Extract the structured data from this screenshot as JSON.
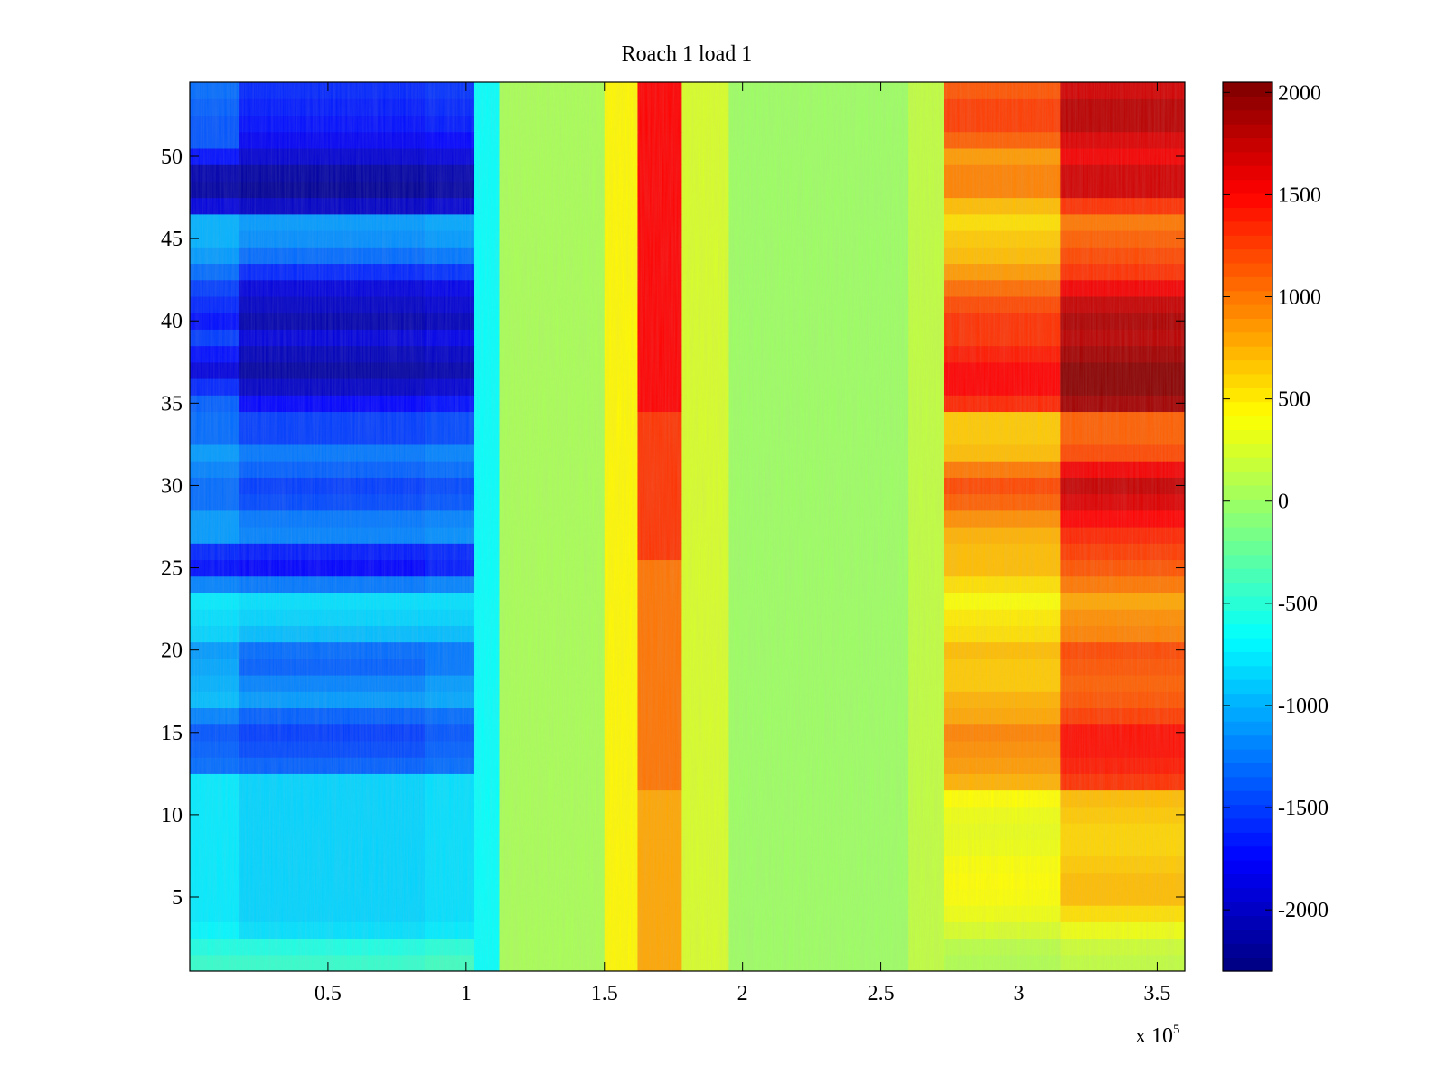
{
  "chart_data": {
    "type": "heatmap",
    "title": "Roach 1 load 1",
    "xlabel": "",
    "ylabel": "",
    "x_exponent_label": "x 10",
    "x_exponent_power": "5",
    "xlim": [
      0,
      3.6
    ],
    "ylim": [
      0.5,
      54.5
    ],
    "x_ticks": [
      0.5,
      1,
      1.5,
      2,
      2.5,
      3,
      3.5
    ],
    "x_tick_labels": [
      "0.5",
      "1",
      "1.5",
      "2",
      "2.5",
      "3",
      "3.5"
    ],
    "y_ticks": [
      5,
      10,
      15,
      20,
      25,
      30,
      35,
      40,
      45,
      50
    ],
    "y_tick_labels": [
      "5",
      "10",
      "15",
      "20",
      "25",
      "30",
      "35",
      "40",
      "45",
      "50"
    ],
    "colormap": "jet",
    "clim": [
      -2300,
      2050
    ],
    "colorbar_ticks": [
      2000,
      1500,
      1000,
      500,
      0,
      -500,
      -1000,
      -1500,
      -2000
    ],
    "colorbar_tick_labels": [
      "2000",
      "1500",
      "1000",
      "500",
      "0",
      "-500",
      "-1000",
      "-1500",
      "-2000"
    ],
    "rows": 54,
    "x_segments": [
      {
        "x0": 0.0,
        "x1": 0.18,
        "base": "col_a"
      },
      {
        "x0": 0.18,
        "x1": 0.85,
        "base": "col_b"
      },
      {
        "x0": 0.85,
        "x1": 1.03,
        "base": "col_b_edge"
      },
      {
        "x0": 1.03,
        "x1": 1.12,
        "value": -650
      },
      {
        "x0": 1.12,
        "x1": 1.5,
        "value": 50
      },
      {
        "x0": 1.5,
        "x1": 1.62,
        "value": 450
      },
      {
        "x0": 1.62,
        "x1": 1.78,
        "value": 800,
        "high_rows_boost": 700
      },
      {
        "x0": 1.78,
        "x1": 1.95,
        "value": 250
      },
      {
        "x0": 1.95,
        "x1": 2.6,
        "value": 0
      },
      {
        "x0": 2.6,
        "x1": 2.73,
        "value": 150
      },
      {
        "x0": 2.73,
        "x1": 3.15,
        "base": "col_r1"
      },
      {
        "x0": 3.15,
        "x1": 3.6,
        "base": "col_r2"
      }
    ],
    "row_profiles": {
      "rows": [
        1,
        2,
        3,
        4,
        5,
        6,
        7,
        8,
        9,
        10,
        11,
        12,
        13,
        14,
        15,
        16,
        17,
        18,
        19,
        20,
        21,
        22,
        23,
        24,
        25,
        26,
        27,
        28,
        29,
        30,
        31,
        32,
        33,
        34,
        35,
        36,
        37,
        38,
        39,
        40,
        41,
        42,
        43,
        44,
        45,
        46,
        47,
        48,
        49,
        50,
        51,
        52,
        53,
        54
      ],
      "col_a": [
        -450,
        -550,
        -700,
        -750,
        -750,
        -750,
        -750,
        -750,
        -750,
        -750,
        -750,
        -750,
        -1300,
        -1350,
        -1400,
        -1200,
        -950,
        -1000,
        -1050,
        -1100,
        -850,
        -800,
        -750,
        -1200,
        -1700,
        -1600,
        -1100,
        -1100,
        -1300,
        -1300,
        -1200,
        -1100,
        -1300,
        -1300,
        -1350,
        -1600,
        -1900,
        -1700,
        -1500,
        -1700,
        -1600,
        -1500,
        -1300,
        -1100,
        -1000,
        -1000,
        -1900,
        -2150,
        -2100,
        -1700,
        -1400,
        -1400,
        -1350,
        -1300
      ],
      "col_b": [
        -450,
        -550,
        -800,
        -850,
        -850,
        -850,
        -850,
        -850,
        -850,
        -850,
        -850,
        -850,
        -1350,
        -1450,
        -1500,
        -1350,
        -1100,
        -1200,
        -1350,
        -1300,
        -950,
        -850,
        -800,
        -1250,
        -1750,
        -1650,
        -1200,
        -1250,
        -1450,
        -1500,
        -1350,
        -1250,
        -1500,
        -1500,
        -1750,
        -2000,
        -2150,
        -2050,
        -1900,
        -2100,
        -2000,
        -1900,
        -1600,
        -1300,
        -1150,
        -1100,
        -2000,
        -2200,
        -2150,
        -1950,
        -1800,
        -1700,
        -1650,
        -1600
      ],
      "col_b_edge": [
        -400,
        -500,
        -750,
        -800,
        -800,
        -800,
        -800,
        -800,
        -800,
        -800,
        -800,
        -800,
        -1300,
        -1350,
        -1400,
        -1300,
        -1050,
        -1100,
        -1250,
        -1250,
        -950,
        -850,
        -800,
        -1200,
        -1650,
        -1600,
        -1150,
        -1200,
        -1400,
        -1450,
        -1300,
        -1200,
        -1450,
        -1450,
        -1700,
        -1950,
        -2100,
        -2000,
        -1850,
        -2050,
        -1950,
        -1850,
        -1550,
        -1250,
        -1100,
        -1050,
        -1950,
        -2150,
        -2100,
        -1900,
        -1750,
        -1650,
        -1600,
        -1550
      ],
      "col_r1": [
        80,
        120,
        250,
        350,
        400,
        420,
        400,
        350,
        320,
        350,
        420,
        750,
        850,
        900,
        950,
        800,
        750,
        650,
        650,
        700,
        550,
        500,
        400,
        550,
        700,
        700,
        750,
        900,
        1100,
        1200,
        1000,
        700,
        650,
        650,
        1350,
        1500,
        1500,
        1400,
        1300,
        1300,
        1200,
        1050,
        850,
        700,
        650,
        550,
        700,
        950,
        950,
        850,
        1100,
        1250,
        1250,
        1150
      ],
      "col_r2": [
        150,
        200,
        350,
        550,
        700,
        700,
        650,
        600,
        600,
        650,
        700,
        1300,
        1400,
        1450,
        1450,
        1250,
        1150,
        1100,
        1150,
        1200,
        950,
        900,
        800,
        1000,
        1150,
        1250,
        1350,
        1500,
        1650,
        1750,
        1550,
        1200,
        1100,
        1100,
        1900,
        2000,
        2000,
        1900,
        1800,
        1850,
        1750,
        1550,
        1300,
        1200,
        1100,
        1000,
        1300,
        1700,
        1700,
        1550,
        1650,
        1800,
        1800,
        1700
      ]
    }
  }
}
